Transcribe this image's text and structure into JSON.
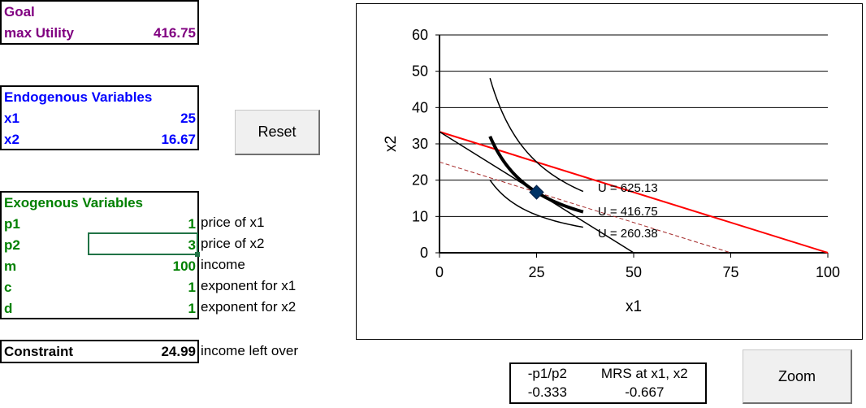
{
  "goal": {
    "title": "Goal",
    "label": "max Utility",
    "value": "416.75"
  },
  "endogenous": {
    "title": "Endogenous Variables",
    "rows": [
      {
        "label": "x1",
        "value": "25"
      },
      {
        "label": "x2",
        "value": "16.67"
      }
    ]
  },
  "reset_label": "Reset",
  "exogenous": {
    "title": "Exogenous Variables",
    "rows": [
      {
        "label": "p1",
        "value": "1",
        "desc": "price of x1"
      },
      {
        "label": "p2",
        "value": "3",
        "desc": "price of x2"
      },
      {
        "label": "m",
        "value": "100",
        "desc": "income"
      },
      {
        "label": "c",
        "value": "1",
        "desc": "exponent for x1"
      },
      {
        "label": "d",
        "value": "1",
        "desc": "exponent for x2"
      }
    ]
  },
  "constraint": {
    "label": "Constraint",
    "value": "24.99",
    "desc": "income left over"
  },
  "mrs": {
    "h1": "-p1/p2",
    "h2": "MRS at x1, x2",
    "v1": "-0.333",
    "v2": "-0.667"
  },
  "zoom_label": "Zoom",
  "chart_data": {
    "type": "line",
    "xlabel": "x1",
    "ylabel": "x2",
    "xlim": [
      0,
      100
    ],
    "ylim": [
      0,
      60
    ],
    "xticks": [
      "0",
      "25",
      "50",
      "75",
      "100"
    ],
    "yticks": [
      "0",
      "10",
      "20",
      "30",
      "40",
      "50",
      "60"
    ],
    "lines": [
      {
        "name": "budget",
        "color": "#ff0000",
        "from": [
          0,
          33.33
        ],
        "to": [
          100,
          0
        ]
      },
      {
        "name": "budget-alt",
        "color": "#000000",
        "from": [
          0,
          33.33
        ],
        "to": [
          50,
          0
        ]
      },
      {
        "name": "budget-dashed",
        "color": "#a52a2a",
        "from": [
          0,
          25
        ],
        "to": [
          75,
          0
        ]
      }
    ],
    "curves": [
      {
        "label": "U = 625.13",
        "U": 625.13,
        "x_range": [
          13,
          37
        ]
      },
      {
        "label": "U = 416.75",
        "U": 416.75,
        "x_range": [
          13,
          37
        ]
      },
      {
        "label": "U = 260.38",
        "U": 260.38,
        "x_range": [
          13,
          37
        ]
      }
    ],
    "optimum": [
      25,
      16.67
    ],
    "optimum_color": "#003366"
  }
}
